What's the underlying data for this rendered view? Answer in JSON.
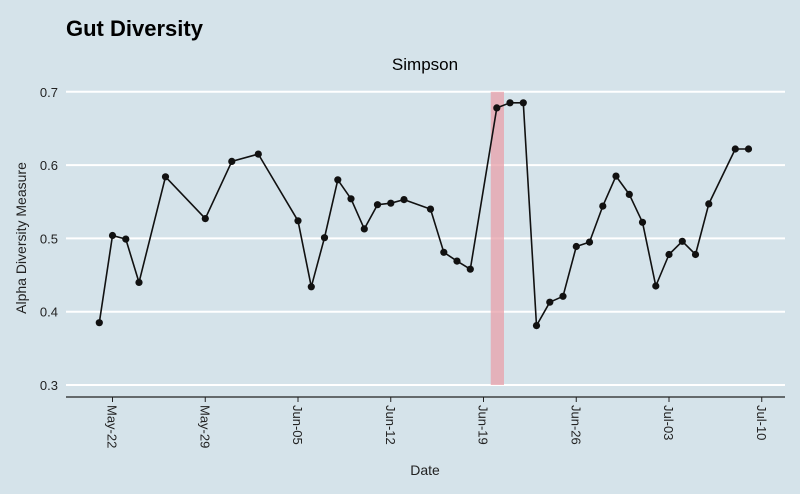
{
  "chart_data": {
    "type": "line",
    "title": "Gut Diversity",
    "subtitle": "Simpson",
    "xlabel": "Date",
    "ylabel": "Alpha Diversity Measure",
    "ylim": [
      0.3,
      0.7
    ],
    "yticks": [
      0.3,
      0.4,
      0.5,
      0.6,
      0.7
    ],
    "ytick_labels": [
      "0.3",
      "0.4",
      "0.5",
      "0.6",
      "0.7"
    ],
    "xticks": [
      "2021-05-22",
      "2021-05-29",
      "2021-06-05",
      "2021-06-12",
      "2021-06-19",
      "2021-06-26",
      "2021-07-03",
      "2021-07-10"
    ],
    "xtick_labels": [
      "May-22",
      "May-29",
      "Jun-05",
      "Jun-12",
      "Jun-19",
      "Jun-26",
      "Jul-03",
      "Jul-10"
    ],
    "grid": "horizontal",
    "colors": {
      "background": "#d5e3ea",
      "grid": "#ffffff",
      "line": "#111111",
      "highlight": "#e8a0aa"
    },
    "highlight_band": {
      "x": [
        "2021-06-20",
        "2021-06-21"
      ],
      "y": [
        0.3,
        0.7
      ]
    },
    "series": [
      {
        "x": [
          "2021-05-21",
          "2021-05-22",
          "2021-05-23",
          "2021-05-24",
          "2021-05-26",
          "2021-05-29",
          "2021-05-31",
          "2021-06-02",
          "2021-06-05",
          "2021-06-06",
          "2021-06-07",
          "2021-06-08",
          "2021-06-09",
          "2021-06-10",
          "2021-06-11",
          "2021-06-12",
          "2021-06-13",
          "2021-06-15",
          "2021-06-16",
          "2021-06-17",
          "2021-06-18",
          "2021-06-20",
          "2021-06-21",
          "2021-06-22",
          "2021-06-23",
          "2021-06-24",
          "2021-06-25",
          "2021-06-26",
          "2021-06-27",
          "2021-06-28",
          "2021-06-29",
          "2021-06-30",
          "2021-07-01",
          "2021-07-02",
          "2021-07-03",
          "2021-07-04",
          "2021-07-05",
          "2021-07-06",
          "2021-07-08",
          "2021-07-09"
        ],
        "y": [
          0.385,
          0.504,
          0.499,
          0.44,
          0.584,
          0.527,
          0.605,
          0.615,
          0.524,
          0.434,
          0.501,
          0.58,
          0.554,
          0.513,
          0.546,
          0.548,
          0.553,
          0.54,
          0.481,
          0.469,
          0.458,
          0.678,
          0.685,
          0.685,
          0.381,
          0.413,
          0.421,
          0.489,
          0.495,
          0.544,
          0.585,
          0.56,
          0.522,
          0.435,
          0.478,
          0.496,
          0.478,
          0.547,
          0.622,
          0.622
        ]
      }
    ]
  }
}
